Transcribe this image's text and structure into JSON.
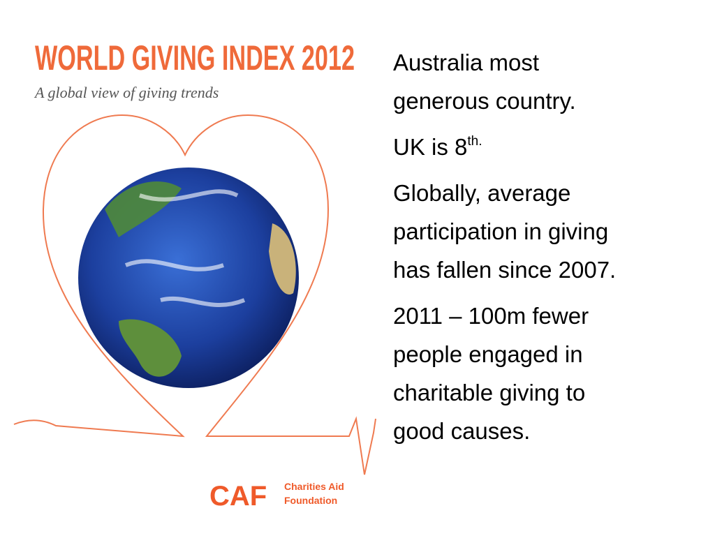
{
  "cover": {
    "title": "WORLD GIVING INDEX 2012",
    "subtitle": "A global view of giving trends",
    "logo": {
      "acronym": "CAF",
      "name_lines": [
        "Charities Aid",
        "Foundation"
      ]
    }
  },
  "points": [
    {
      "lines": [
        "Australia most",
        "generous country."
      ]
    },
    {
      "lines": [
        "UK is 8"
      ],
      "superscript": "th."
    },
    {
      "lines": [
        "Globally, average",
        "participation in giving",
        "has fallen since 2007."
      ]
    },
    {
      "lines": [
        "2011 – 100m fewer",
        "people engaged in",
        "charitable giving to",
        "good causes."
      ]
    }
  ]
}
